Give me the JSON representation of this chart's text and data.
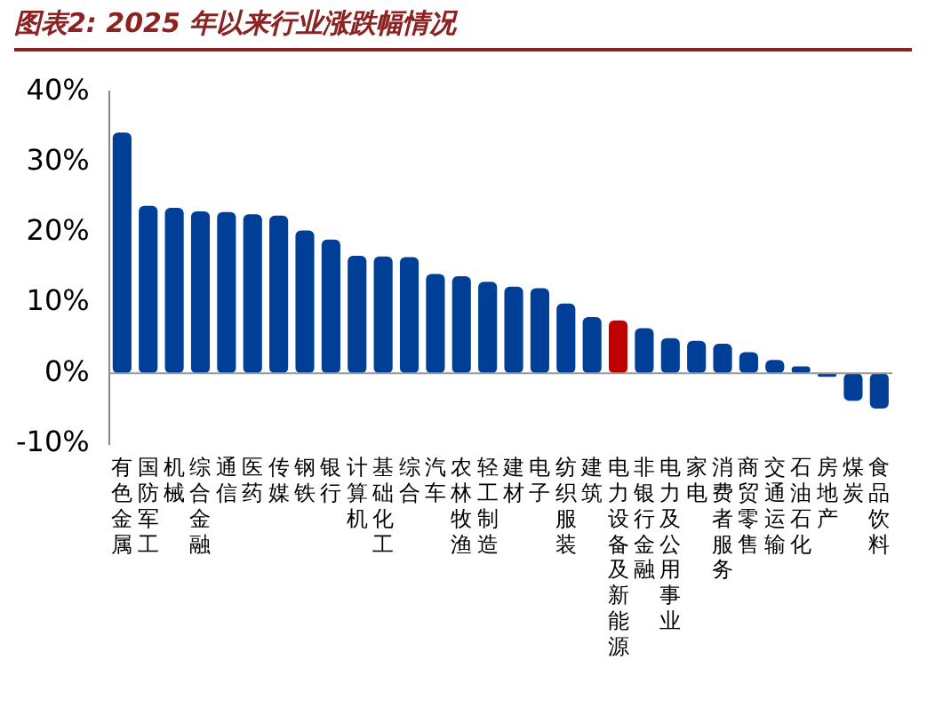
{
  "chart_data": {
    "type": "bar",
    "title": "图表2:  2025 年以来行业涨跌幅情况",
    "categories": [
      "有色金属",
      "国防军工",
      "机械",
      "综合金融",
      "通信",
      "医药",
      "传媒",
      "钢铁",
      "银行",
      "计算机",
      "基础化工",
      "综合",
      "汽车",
      "农林牧渔",
      "轻工制造",
      "建材",
      "电子",
      "纺织服装",
      "建筑",
      "电力设备及新能源",
      "非银行金融",
      "电力及公用事业",
      "家电",
      "消费者服务",
      "商贸零售",
      "交通运输",
      "石油石化",
      "房地产",
      "煤炭",
      "食品饮料"
    ],
    "values": [
      34.2,
      23.8,
      23.5,
      23.0,
      22.9,
      22.6,
      22.4,
      20.3,
      19.0,
      16.7,
      16.6,
      16.5,
      14.1,
      13.8,
      13.0,
      12.3,
      12.1,
      9.9,
      8.0,
      7.5,
      6.4,
      5.0,
      4.6,
      4.2,
      3.0,
      1.9,
      1.0,
      -0.5,
      -3.9,
      -5.0
    ],
    "colors": [
      "#003f98",
      "#003f98",
      "#003f98",
      "#003f98",
      "#003f98",
      "#003f98",
      "#003f98",
      "#003f98",
      "#003f98",
      "#003f98",
      "#003f98",
      "#003f98",
      "#003f98",
      "#003f98",
      "#003f98",
      "#003f98",
      "#003f98",
      "#003f98",
      "#003f98",
      "#c00000",
      "#003f98",
      "#003f98",
      "#003f98",
      "#003f98",
      "#003f98",
      "#003f98",
      "#003f98",
      "#003f98",
      "#003f98",
      "#003f98"
    ],
    "ylim": [
      -10,
      40
    ],
    "yticks": [
      {
        "value": -10,
        "label": "-10%"
      },
      {
        "value": 0,
        "label": "0%"
      },
      {
        "value": 10,
        "label": "10%"
      },
      {
        "value": 20,
        "label": "20%"
      },
      {
        "value": 30,
        "label": "30%"
      },
      {
        "value": 40,
        "label": "40%"
      }
    ],
    "ref_lines": [
      {
        "axis": "y",
        "value": 0,
        "color": "#999999"
      }
    ],
    "grid": false,
    "legend": false
  }
}
